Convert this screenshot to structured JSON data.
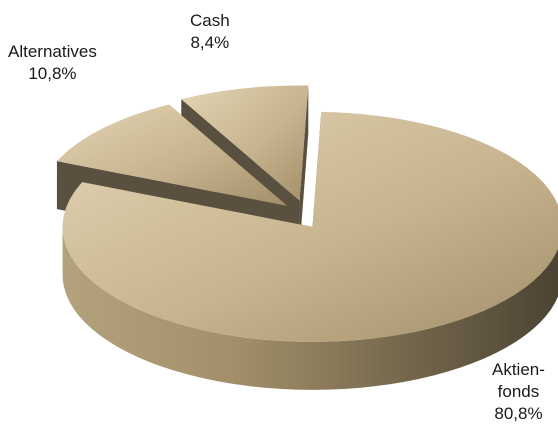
{
  "chart_data": {
    "type": "pie",
    "style": "3d-exploded",
    "slices": [
      {
        "label_lines": [
          "Aktien-",
          "fonds"
        ],
        "value_text": "80,8%",
        "value": 80.8
      },
      {
        "label_lines": [
          "Alternatives"
        ],
        "value_text": "10,8%",
        "value": 10.8
      },
      {
        "label_lines": [
          "Cash"
        ],
        "value_text": "8,4%",
        "value": 8.4
      }
    ],
    "colors": {
      "top_light": "#e3d5b4",
      "top_mid": "#c8b48f",
      "top_dark": "#a28f69",
      "side_light": "#b3a27c",
      "side_dark": "#4a4232",
      "inner_wall": "#5a5040"
    }
  }
}
